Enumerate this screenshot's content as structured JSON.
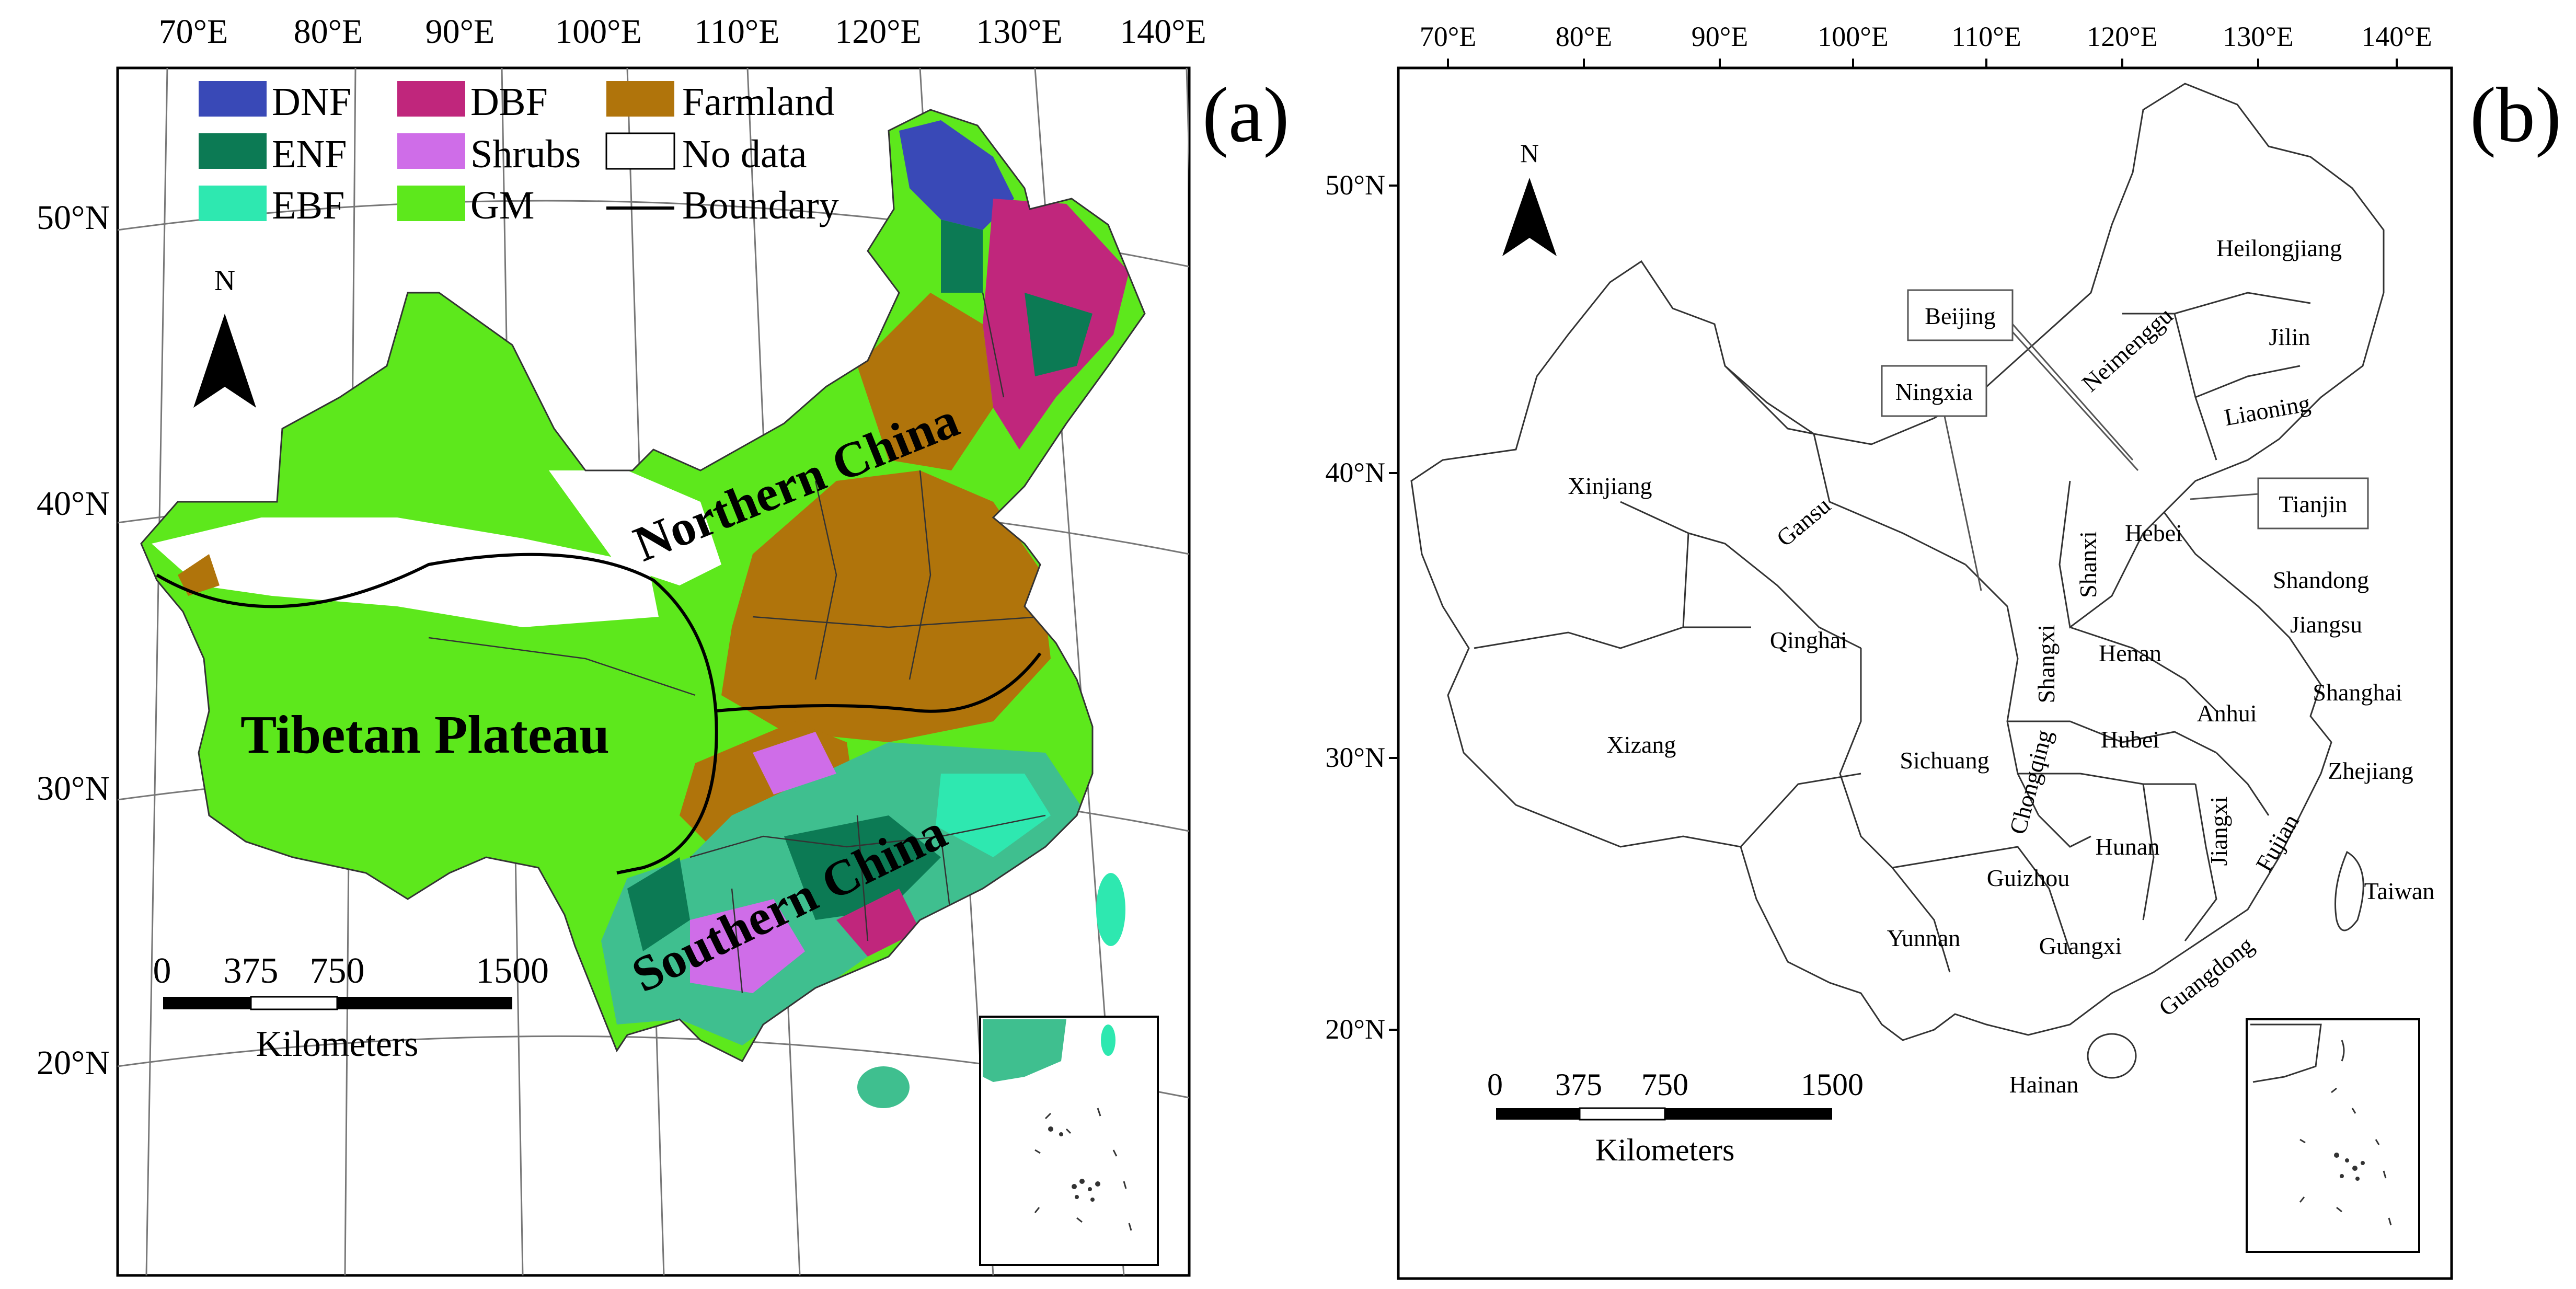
{
  "panel_a": {
    "label": "(a)",
    "lon_labels": [
      "70°E",
      "80°E",
      "90°E",
      "100°E",
      "110°E",
      "120°E",
      "130°E",
      "140°E"
    ],
    "lat_labels": [
      "50°N",
      "40°N",
      "30°N",
      "20°N"
    ],
    "legend": [
      {
        "code": "DNF",
        "color": "#3949b7"
      },
      {
        "code": "ENF",
        "color": "#0c7a54"
      },
      {
        "code": "EBF",
        "color": "#2ee8b0"
      },
      {
        "code": "DBF",
        "color": "#c0267c"
      },
      {
        "code": "Shrubs",
        "color": "#cf6de8"
      },
      {
        "code": "GM",
        "color": "#5de81c"
      },
      {
        "code": "Farmland",
        "color": "#b0740b"
      },
      {
        "code": "No data",
        "color": "#ffffff"
      },
      {
        "code": "Boundary",
        "color": "#000000"
      }
    ],
    "region_labels": {
      "tibet": "Tibetan Plateau",
      "north": "Northern China",
      "south": "Southern China"
    },
    "north_arrow": "N",
    "scale": {
      "ticks": [
        "0",
        "375",
        "750",
        "1500"
      ],
      "unit": "Kilometers"
    }
  },
  "panel_b": {
    "label": "(b)",
    "lon_labels": [
      "70°E",
      "80°E",
      "90°E",
      "100°E",
      "110°E",
      "120°E",
      "130°E",
      "140°E"
    ],
    "lat_labels": [
      "50°N",
      "40°N",
      "30°N",
      "20°N"
    ],
    "north_arrow": "N",
    "provinces": [
      "Heilongjiang",
      "Jilin",
      "Liaoning",
      "Neimenggu",
      "Xinjiang",
      "Gansu",
      "Qinghai",
      "Xizang",
      "Sichuang",
      "Yunnan",
      "Guizhou",
      "Guangxi",
      "Hunan",
      "Hubei",
      "Henan",
      "Shanxi",
      "Shangxi",
      "Hebei",
      "Shandong",
      "Jiangsu",
      "Anhui",
      "Shanghai",
      "Zhejiang",
      "Jiangxi",
      "Fujian",
      "Taiwan",
      "Guangdong",
      "Hainan",
      "Chongqing"
    ],
    "boxed_labels": [
      "Beijing",
      "Ningxia",
      "Tianjin"
    ],
    "scale": {
      "ticks": [
        "0",
        "375",
        "750",
        "1500"
      ],
      "unit": "Kilometers"
    }
  },
  "colors": {
    "dnf": "#3949b7",
    "enf": "#0c7a54",
    "ebf": "#2ee8b0",
    "dbf": "#c0267c",
    "shrubs": "#cf6de8",
    "gm": "#5de81c",
    "farmland": "#b0740b"
  }
}
